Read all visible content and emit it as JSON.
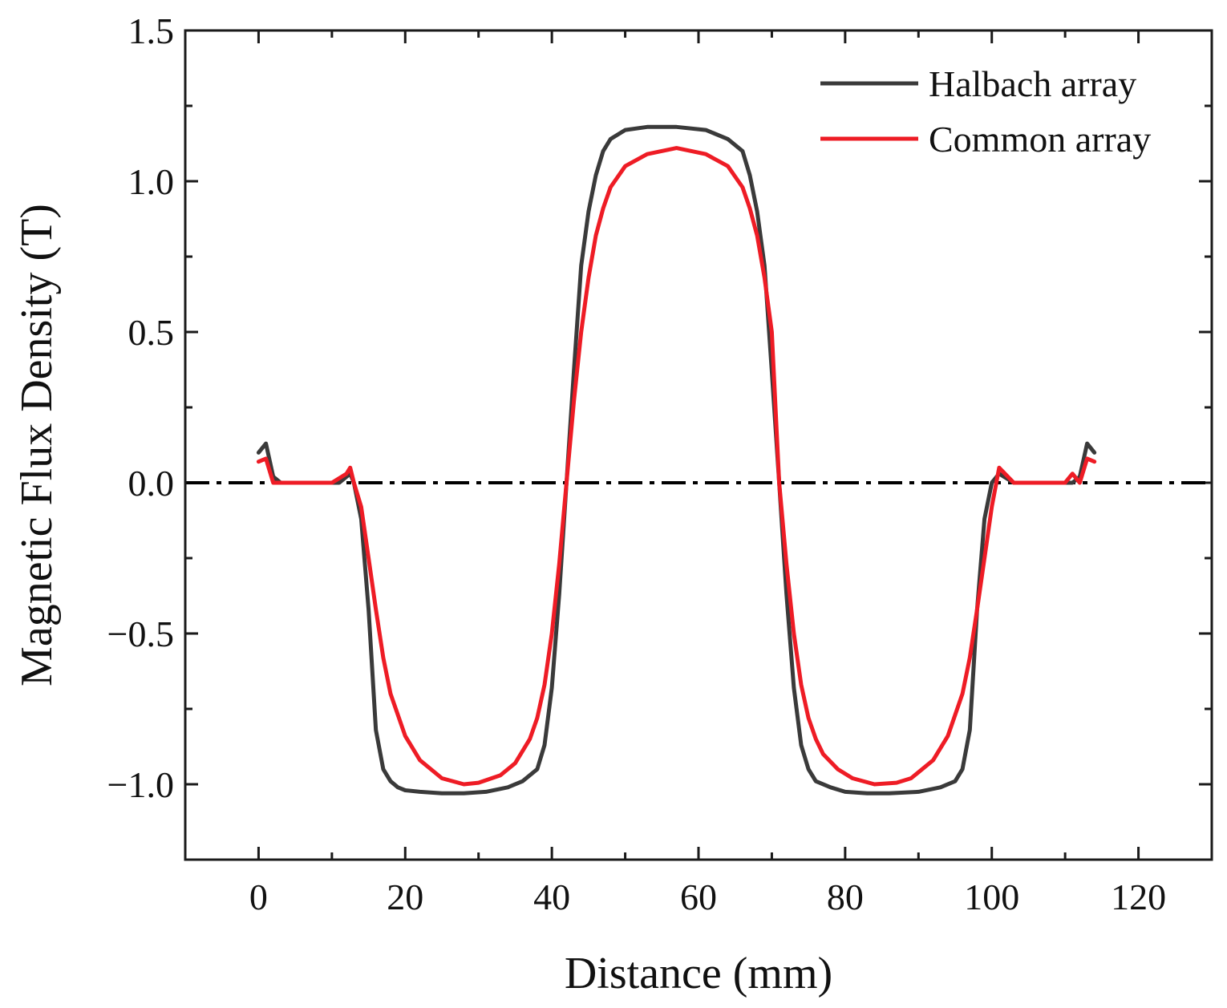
{
  "chart_data": {
    "type": "line",
    "title": "",
    "xlabel": "Distance (mm)",
    "ylabel": "Magnetic Flux Density (T)",
    "xlim": [
      -10,
      130
    ],
    "ylim": [
      -1.25,
      1.5
    ],
    "x_ticks": [
      0,
      20,
      40,
      60,
      80,
      100,
      120
    ],
    "x_tick_labels": [
      "0",
      "20",
      "40",
      "60",
      "80",
      "100",
      "120"
    ],
    "y_ticks": [
      1.5,
      1.0,
      0.5,
      0.0,
      -0.5,
      -1.0
    ],
    "y_tick_labels": [
      "1.5",
      "1.0",
      "0.5",
      "0.0",
      "−0.5",
      "−1.0"
    ],
    "grid": false,
    "legend_position": "top-right",
    "reference_line": {
      "y": 0.0,
      "style": "dash-dot",
      "color": "#000000"
    },
    "series": [
      {
        "name": "Halbach array",
        "color": "#3a3a3a",
        "x": [
          0,
          1,
          2,
          3,
          5,
          7,
          9,
          11,
          12.5,
          13,
          14,
          15,
          16,
          17,
          18,
          19,
          20,
          22,
          25,
          28,
          31,
          34,
          36,
          38,
          39,
          40,
          41,
          42,
          43,
          44,
          45,
          46,
          47,
          48,
          50,
          53,
          57,
          61,
          64,
          66,
          67,
          68,
          69,
          70,
          71,
          72,
          73,
          74,
          75,
          76,
          78,
          80,
          83,
          86,
          90,
          93,
          95,
          96,
          97,
          98,
          99,
          100,
          101,
          103,
          106,
          109,
          111,
          112,
          113,
          114
        ],
        "values": [
          0.1,
          0.13,
          0.02,
          0.0,
          0.0,
          0.0,
          0.0,
          0.0,
          0.03,
          0.0,
          -0.12,
          -0.42,
          -0.82,
          -0.95,
          -0.99,
          -1.01,
          -1.02,
          -1.025,
          -1.03,
          -1.03,
          -1.025,
          -1.01,
          -0.99,
          -0.95,
          -0.87,
          -0.68,
          -0.37,
          0.0,
          0.37,
          0.72,
          0.9,
          1.02,
          1.1,
          1.14,
          1.17,
          1.18,
          1.18,
          1.17,
          1.14,
          1.1,
          1.02,
          0.9,
          0.72,
          0.37,
          0.0,
          -0.37,
          -0.68,
          -0.87,
          -0.95,
          -0.99,
          -1.01,
          -1.025,
          -1.03,
          -1.03,
          -1.025,
          -1.01,
          -0.99,
          -0.95,
          -0.82,
          -0.42,
          -0.12,
          0.0,
          0.03,
          0.0,
          0.0,
          0.0,
          0.0,
          0.02,
          0.13,
          0.1
        ]
      },
      {
        "name": "Common array",
        "color": "#ee1c25",
        "x": [
          0,
          1,
          2,
          3,
          5,
          8,
          10,
          12,
          12.5,
          13,
          14,
          15,
          16,
          17,
          18,
          20,
          22,
          25,
          28,
          30,
          33,
          35,
          37,
          38,
          39,
          40,
          41,
          42,
          43,
          44,
          45,
          46,
          47,
          48,
          50,
          53,
          57,
          61,
          64,
          66,
          67,
          68,
          69,
          70,
          71,
          72,
          73,
          74,
          75,
          76,
          77,
          79,
          81,
          84,
          87,
          89,
          92,
          94,
          95,
          96,
          97,
          98,
          99,
          100,
          101,
          103,
          106,
          110,
          111,
          112,
          113,
          114
        ],
        "values": [
          0.07,
          0.08,
          0.0,
          0.0,
          0.0,
          0.0,
          0.0,
          0.03,
          0.05,
          0.0,
          -0.08,
          -0.25,
          -0.42,
          -0.58,
          -0.7,
          -0.84,
          -0.92,
          -0.98,
          -1.0,
          -0.995,
          -0.97,
          -0.93,
          -0.85,
          -0.78,
          -0.67,
          -0.5,
          -0.27,
          0.0,
          0.27,
          0.5,
          0.68,
          0.82,
          0.91,
          0.98,
          1.05,
          1.09,
          1.11,
          1.09,
          1.05,
          0.98,
          0.91,
          0.82,
          0.68,
          0.5,
          0.0,
          -0.27,
          -0.5,
          -0.67,
          -0.78,
          -0.85,
          -0.9,
          -0.95,
          -0.98,
          -1.0,
          -0.995,
          -0.98,
          -0.92,
          -0.84,
          -0.77,
          -0.7,
          -0.58,
          -0.42,
          -0.25,
          -0.08,
          0.05,
          0.0,
          0.0,
          0.0,
          0.03,
          0.0,
          0.08,
          0.07
        ]
      }
    ]
  }
}
